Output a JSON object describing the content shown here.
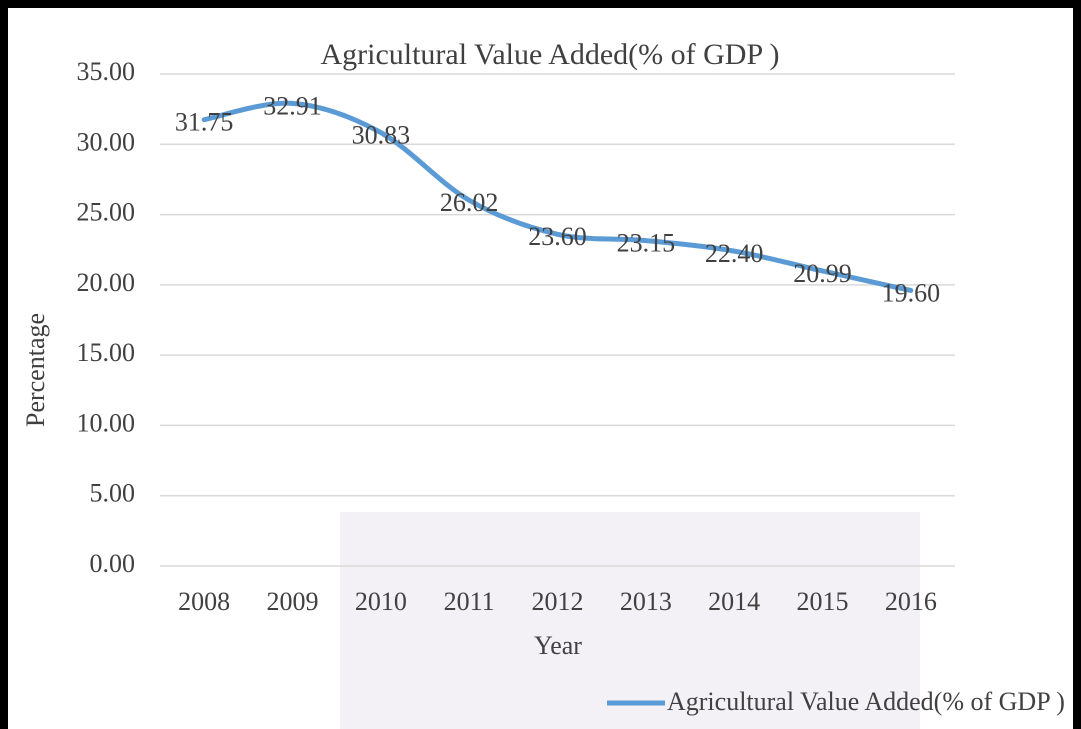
{
  "chart_data": {
    "type": "line",
    "title": "Agricultural Value Added(% of GDP )",
    "x_label": "Year",
    "y_label": "Percentage",
    "categories": [
      "2008",
      "2009",
      "2010",
      "2011",
      "2012",
      "2013",
      "2014",
      "2015",
      "2016"
    ],
    "series": [
      {
        "name": "Agricultural Value Added(% of GDP )",
        "color": "#5b9bd5",
        "values": [
          31.75,
          32.91,
          30.83,
          26.02,
          23.6,
          23.15,
          22.4,
          20.99,
          19.6
        ],
        "value_labels": [
          "31.75",
          "32.91",
          "30.83",
          "26.02",
          "23.60",
          "23.15",
          "22.40",
          "20.99",
          "19.60"
        ]
      }
    ],
    "ylim": [
      0,
      35
    ],
    "yticks": [
      {
        "value": 0,
        "label": "0.00"
      },
      {
        "value": 5,
        "label": "5.00"
      },
      {
        "value": 10,
        "label": "10.00"
      },
      {
        "value": 15,
        "label": "15.00"
      },
      {
        "value": 20,
        "label": "20.00"
      },
      {
        "value": 25,
        "label": "25.00"
      },
      {
        "value": 30,
        "label": "30.00"
      },
      {
        "value": 35,
        "label": "35.00"
      }
    ],
    "grid": true,
    "smooth": true,
    "legend": "bottom-right"
  }
}
